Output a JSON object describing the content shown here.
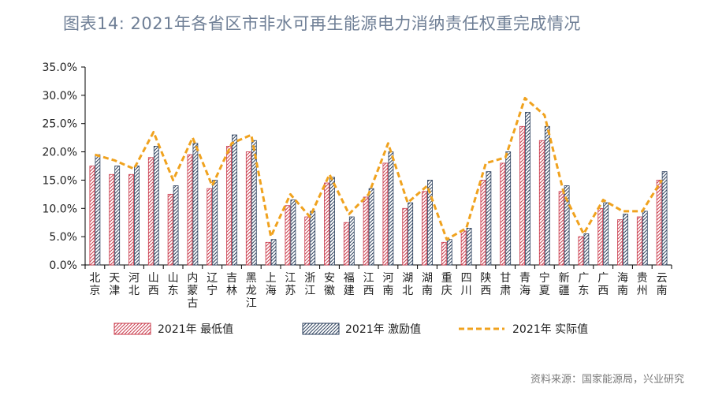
{
  "title": "图表14:   2021年各省区市非水可再生能源电力消纳责任权重完成情况",
  "source": "资料来源：国家能源局，兴业研究",
  "colors": {
    "min": "#c9394a",
    "incentive": "#2b3f5c",
    "actual": "#f0a21e",
    "axis": "#000000"
  },
  "chart_data": {
    "type": "bar",
    "categories": [
      "北京",
      "天津",
      "河北",
      "山西",
      "山东",
      "内蒙古",
      "辽宁",
      "吉林",
      "黑龙江",
      "上海",
      "江苏",
      "浙江",
      "安徽",
      "福建",
      "江西",
      "河南",
      "湖北",
      "湖南",
      "重庆",
      "四川",
      "陕西",
      "甘肃",
      "青海",
      "宁夏",
      "新疆",
      "广东",
      "广西",
      "海南",
      "贵州",
      "云南"
    ],
    "series": [
      {
        "name": "2021年 最低值",
        "type": "bar",
        "pattern": "hatch-red",
        "values": [
          17.5,
          16.0,
          16.0,
          19.0,
          12.5,
          19.5,
          13.5,
          21.0,
          20.0,
          4.0,
          10.5,
          8.5,
          14.5,
          7.5,
          12.0,
          18.0,
          10.0,
          13.0,
          4.0,
          6.0,
          15.0,
          18.0,
          24.5,
          22.0,
          13.0,
          5.0,
          10.0,
          8.0,
          8.5,
          15.0
        ]
      },
      {
        "name": "2021年 激励值",
        "type": "bar",
        "pattern": "hatch-navy",
        "values": [
          19.5,
          17.5,
          17.5,
          21.0,
          14.0,
          21.5,
          15.0,
          23.0,
          22.0,
          4.5,
          11.5,
          9.5,
          15.5,
          8.5,
          13.5,
          20.0,
          11.0,
          15.0,
          4.5,
          6.5,
          16.5,
          20.0,
          27.0,
          24.5,
          14.0,
          5.5,
          11.0,
          9.0,
          9.5,
          16.5
        ]
      },
      {
        "name": "2021年 实际值",
        "type": "line",
        "style": "dashed",
        "values": [
          19.5,
          18.5,
          17.0,
          23.5,
          15.0,
          22.5,
          14.0,
          21.5,
          23.0,
          5.0,
          12.5,
          8.5,
          16.0,
          9.0,
          12.5,
          21.5,
          11.0,
          14.0,
          4.5,
          6.5,
          18.0,
          19.0,
          29.5,
          26.5,
          12.5,
          5.5,
          11.5,
          9.5,
          9.5,
          15.0
        ]
      }
    ],
    "ylim": [
      0,
      35
    ],
    "yticks": [
      "0.0%",
      "5.0%",
      "10.0%",
      "15.0%",
      "20.0%",
      "25.0%",
      "30.0%",
      "35.0%"
    ],
    "ytick_values": [
      0,
      5,
      10,
      15,
      20,
      25,
      30,
      35
    ],
    "grid": false,
    "legend_position": "bottom"
  }
}
